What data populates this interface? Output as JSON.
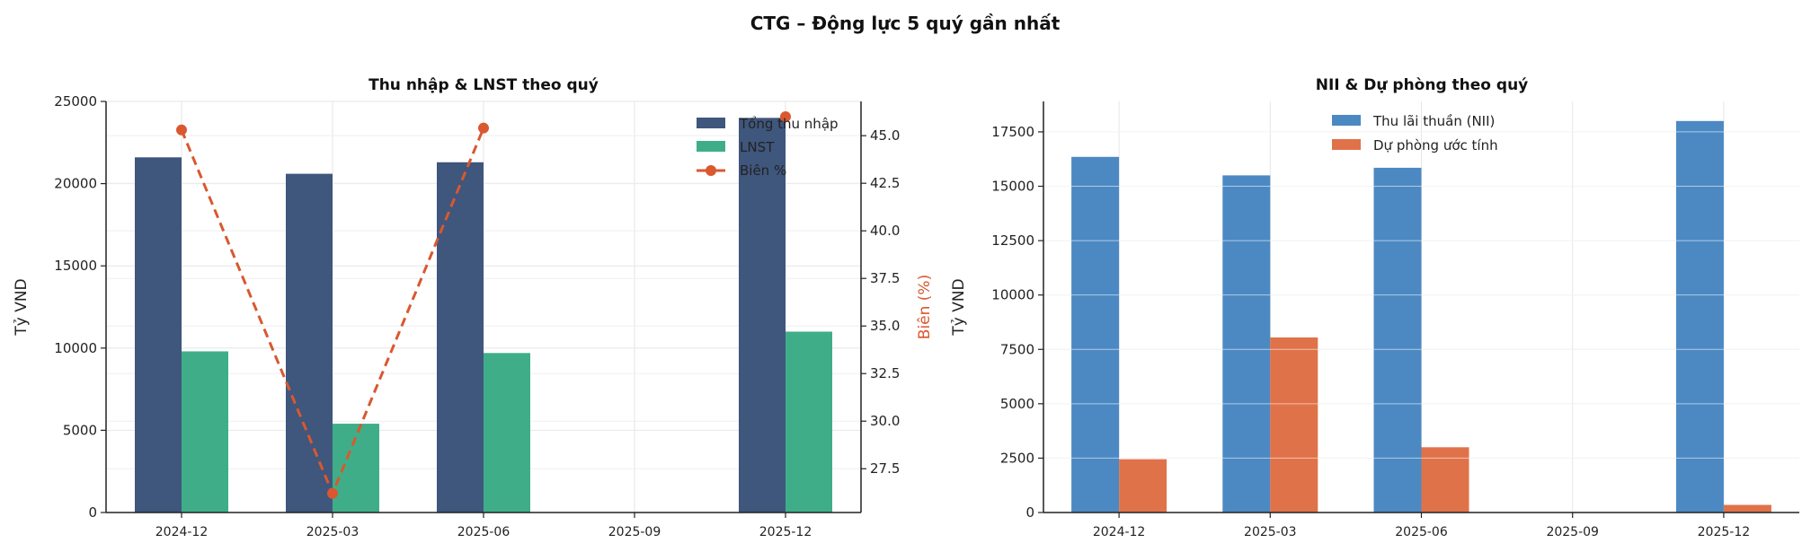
{
  "suptitle": "CTG – Động lực 5 quý gần nhất",
  "colors": {
    "income": "#3f567d",
    "npat": "#3fae88",
    "margin": "#d9582f",
    "nii": "#4c89c3",
    "provision": "#e0724a"
  },
  "chart_data": [
    {
      "type": "bar",
      "title": "Thu nhập & LNST theo quý",
      "categories": [
        "2024-12",
        "2025-03",
        "2025-06",
        "2025-09",
        "2025-12"
      ],
      "ylabel": "Tỷ VND",
      "ylim": [
        0,
        25000
      ],
      "yticks": [
        0,
        5000,
        10000,
        15000,
        20000,
        25000
      ],
      "grid": true,
      "legend": "top-right",
      "series": [
        {
          "name": "Tổng thu nhập",
          "type": "bar",
          "values": [
            21600,
            20600,
            21300,
            null,
            24000
          ]
        },
        {
          "name": "LNST",
          "type": "bar",
          "values": [
            9800,
            5400,
            9700,
            null,
            11000
          ]
        }
      ],
      "secondary_axis": {
        "ylabel": "Biên (%)",
        "ylim": [
          25.2,
          46.8
        ],
        "yticks": [
          27.5,
          30.0,
          32.5,
          35.0,
          37.5,
          40.0,
          42.5,
          45.0
        ],
        "series": {
          "name": "Biên %",
          "type": "line",
          "style": "dashed",
          "values": [
            45.3,
            26.2,
            45.4,
            null,
            46.0
          ]
        }
      }
    },
    {
      "type": "bar",
      "title": "NII & Dự phòng theo quý",
      "categories": [
        "2024-12",
        "2025-03",
        "2025-06",
        "2025-09",
        "2025-12"
      ],
      "ylabel": "Tỷ VND",
      "ylim": [
        0,
        18900
      ],
      "yticks": [
        0,
        2500,
        5000,
        7500,
        10000,
        12500,
        15000,
        17500
      ],
      "grid": true,
      "legend": "top-center",
      "series": [
        {
          "name": "Thu lãi thuần (NII)",
          "values": [
            16350,
            15500,
            15850,
            null,
            18000
          ]
        },
        {
          "name": "Dự phòng ước tính",
          "values": [
            2450,
            8050,
            3000,
            null,
            350
          ]
        }
      ]
    }
  ]
}
